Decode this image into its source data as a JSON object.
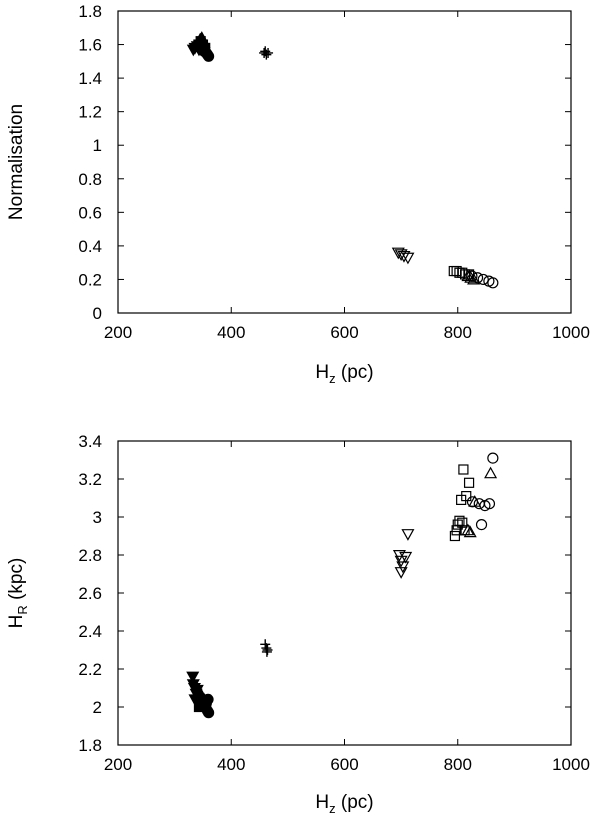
{
  "chart_data": [
    {
      "type": "scatter",
      "xlabel": "H",
      "xlabel_sub": "z",
      "xlabel_unit": " (pc)",
      "ylabel": "Normalisation",
      "ylabel_sub": "",
      "ylabel_unit": "",
      "xlim": [
        200,
        1000
      ],
      "ylim": [
        0,
        1.8
      ],
      "xticks": [
        "200",
        "400",
        "600",
        "800",
        "1000"
      ],
      "yticks": [
        "0",
        "0.2",
        "0.4",
        "0.6",
        "0.8",
        "1",
        "1.2",
        "1.4",
        "1.6",
        "1.8"
      ],
      "grid": false,
      "series": [
        {
          "marker": "filled-triangle-up",
          "points": [
            [
              345,
              1.63
            ],
            [
              348,
              1.64
            ],
            [
              350,
              1.62
            ],
            [
              352,
              1.61
            ]
          ]
        },
        {
          "marker": "filled-triangle-down",
          "points": [
            [
              333,
              1.57
            ],
            [
              336,
              1.58
            ],
            [
              340,
              1.59
            ],
            [
              343,
              1.57
            ]
          ]
        },
        {
          "marker": "filled-square",
          "points": [
            [
              342,
              1.6
            ],
            [
              346,
              1.62
            ],
            [
              350,
              1.6
            ],
            [
              354,
              1.58
            ]
          ]
        },
        {
          "marker": "filled-circle",
          "points": [
            [
              352,
              1.56
            ],
            [
              356,
              1.55
            ],
            [
              358,
              1.54
            ],
            [
              360,
              1.53
            ]
          ]
        },
        {
          "marker": "plus",
          "points": [
            [
              458,
              1.55
            ],
            [
              462,
              1.54
            ],
            [
              465,
              1.55
            ],
            [
              460,
              1.56
            ]
          ]
        },
        {
          "marker": "open-triangle-down",
          "points": [
            [
              695,
              0.36
            ],
            [
              700,
              0.35
            ],
            [
              705,
              0.34
            ],
            [
              712,
              0.33
            ]
          ]
        },
        {
          "marker": "open-square",
          "points": [
            [
              793,
              0.25
            ],
            [
              798,
              0.25
            ],
            [
              803,
              0.24
            ],
            [
              808,
              0.24
            ],
            [
              813,
              0.23
            ],
            [
              820,
              0.23
            ]
          ]
        },
        {
          "marker": "open-triangle-up",
          "points": [
            [
              818,
              0.22
            ],
            [
              823,
              0.21
            ],
            [
              828,
              0.2
            ]
          ]
        },
        {
          "marker": "open-circle",
          "points": [
            [
              825,
              0.22
            ],
            [
              835,
              0.21
            ],
            [
              845,
              0.2
            ],
            [
              855,
              0.19
            ],
            [
              862,
              0.18
            ]
          ]
        }
      ]
    },
    {
      "type": "scatter",
      "xlabel": "H",
      "xlabel_sub": "z",
      "xlabel_unit": " (pc)",
      "ylabel": "H",
      "ylabel_sub": "R",
      "ylabel_unit": " (kpc)",
      "xlim": [
        200,
        1000
      ],
      "ylim": [
        1.8,
        3.4
      ],
      "xticks": [
        "200",
        "400",
        "600",
        "800",
        "1000"
      ],
      "yticks": [
        "1.8",
        "2",
        "2.2",
        "2.4",
        "2.6",
        "2.8",
        "3",
        "3.2",
        "3.4"
      ],
      "grid": false,
      "series": [
        {
          "marker": "filled-triangle-down",
          "points": [
            [
              332,
              2.16
            ],
            [
              333,
              2.12
            ],
            [
              335,
              2.1
            ],
            [
              338,
              2.07
            ],
            [
              340,
              2.09
            ],
            [
              336,
              2.04
            ]
          ]
        },
        {
          "marker": "filled-triangle-up",
          "points": [
            [
              345,
              2.06
            ],
            [
              348,
              2.05
            ],
            [
              352,
              2.04
            ],
            [
              344,
              2.08
            ]
          ]
        },
        {
          "marker": "filled-square",
          "points": [
            [
              343,
              2.0
            ],
            [
              347,
              2.01
            ],
            [
              350,
              2.03
            ],
            [
              355,
              2.02
            ],
            [
              345,
              2.04
            ]
          ]
        },
        {
          "marker": "filled-circle",
          "points": [
            [
              355,
              2.0
            ],
            [
              358,
              1.98
            ],
            [
              360,
              1.97
            ],
            [
              356,
              2.02
            ],
            [
              359,
              2.04
            ]
          ]
        },
        {
          "marker": "plus",
          "points": [
            [
              460,
              2.33
            ],
            [
              462,
              2.31
            ],
            [
              464,
              2.3
            ],
            [
              463,
              2.29
            ]
          ]
        },
        {
          "marker": "open-triangle-down",
          "points": [
            [
              697,
              2.8
            ],
            [
              700,
              2.77
            ],
            [
              703,
              2.74
            ],
            [
              700,
              2.71
            ],
            [
              708,
              2.79
            ],
            [
              712,
              2.91
            ]
          ]
        },
        {
          "marker": "open-square",
          "points": [
            [
              795,
              2.9
            ],
            [
              798,
              2.93
            ],
            [
              800,
              2.96
            ],
            [
              803,
              2.98
            ],
            [
              806,
              3.09
            ],
            [
              810,
              3.25
            ],
            [
              815,
              3.11
            ],
            [
              820,
              3.18
            ],
            [
              808,
              2.97
            ],
            [
              812,
              2.93
            ]
          ]
        },
        {
          "marker": "open-triangle-up",
          "points": [
            [
              818,
              2.93
            ],
            [
              822,
              2.92
            ],
            [
              830,
              3.08
            ],
            [
              858,
              3.23
            ]
          ]
        },
        {
          "marker": "open-circle",
          "points": [
            [
              826,
              3.08
            ],
            [
              838,
              3.07
            ],
            [
              848,
              3.06
            ],
            [
              856,
              3.07
            ],
            [
              842,
              2.96
            ],
            [
              862,
              3.31
            ]
          ]
        }
      ]
    }
  ]
}
